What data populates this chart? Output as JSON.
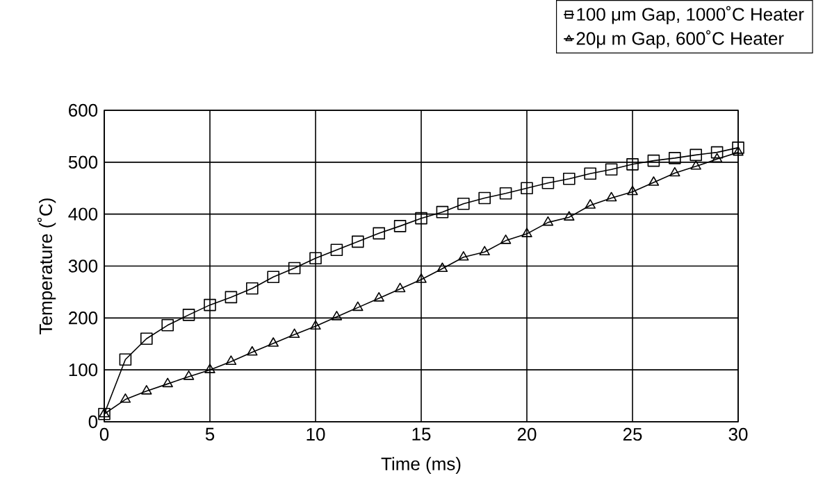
{
  "chart_data": {
    "type": "line",
    "xlabel": "Time (ms)",
    "ylabel": "Temperature (˚C)",
    "x": [
      0,
      1,
      2,
      3,
      4,
      5,
      6,
      7,
      8,
      9,
      10,
      11,
      12,
      13,
      14,
      15,
      16,
      17,
      18,
      19,
      20,
      21,
      22,
      23,
      24,
      25,
      26,
      27,
      28,
      29,
      30
    ],
    "series": [
      {
        "name": "100 μm Gap, 1000˚C Heater",
        "color": "#000000",
        "marker": "square",
        "values": [
          15,
          120,
          160,
          186,
          206,
          225,
          240,
          257,
          279,
          296,
          315,
          331,
          347,
          363,
          377,
          392,
          404,
          420,
          431,
          440,
          450,
          460,
          468,
          478,
          486,
          496,
          503,
          508,
          514,
          519,
          528
        ]
      },
      {
        "name": "20μ m Gap, 600˚C Heater",
        "color": "#000000",
        "marker": "triangle",
        "values": [
          15,
          43,
          59,
          73,
          87,
          100,
          116,
          134,
          151,
          168,
          184,
          202,
          220,
          238,
          256,
          274,
          295,
          317,
          327,
          349,
          362,
          384,
          394,
          417,
          431,
          443,
          461,
          479,
          492,
          506,
          519
        ]
      }
    ],
    "xlim": [
      0,
      30
    ],
    "xticks": [
      0,
      5,
      10,
      15,
      20,
      25,
      30
    ],
    "ylim": [
      0,
      600
    ],
    "yticks": [
      0,
      100,
      200,
      300,
      400,
      500,
      600
    ],
    "grid": true,
    "legend": "top right",
    "line_style": "solid"
  }
}
